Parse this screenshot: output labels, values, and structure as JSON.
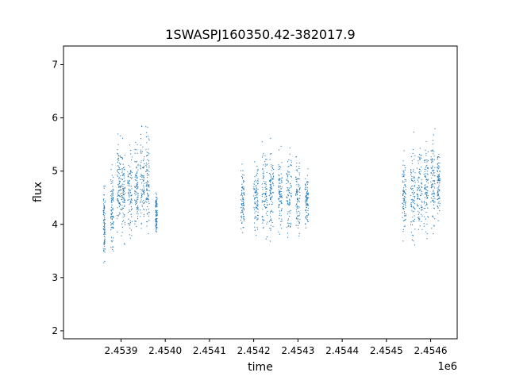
{
  "chart_data": {
    "type": "scatter",
    "title": "1SWASPJ160350.42-382017.9",
    "xlabel": "time",
    "ylabel": "flux",
    "x_offset_label": "1e6",
    "x_tick_labels": [
      "2.4539",
      "2.4540",
      "2.4541",
      "2.4542",
      "2.4543",
      "2.4544",
      "2.4545",
      "2.4546"
    ],
    "x_ticks": [
      2453900,
      2454000,
      2454100,
      2454200,
      2454300,
      2454400,
      2454500,
      2454600
    ],
    "y_ticks": [
      2,
      3,
      4,
      5,
      6,
      7
    ],
    "y_tick_labels": [
      "2",
      "3",
      "4",
      "5",
      "6",
      "7"
    ],
    "xlim": [
      2453770,
      2454660
    ],
    "ylim": [
      1.85,
      7.35
    ],
    "grid": false,
    "marker_color": "#1f77b4",
    "series": [
      {
        "clusters": [
          {
            "x": 2453862,
            "y": 4.0,
            "w": 4,
            "h": 1.8
          },
          {
            "x": 2453880,
            "y": 4.3,
            "w": 6,
            "h": 2.0
          },
          {
            "x": 2453895,
            "y": 4.8,
            "w": 8,
            "h": 2.4
          },
          {
            "x": 2453905,
            "y": 4.6,
            "w": 8,
            "h": 2.2
          },
          {
            "x": 2453920,
            "y": 4.6,
            "w": 10,
            "h": 2.3
          },
          {
            "x": 2453935,
            "y": 4.6,
            "w": 8,
            "h": 2.2
          },
          {
            "x": 2453948,
            "y": 4.8,
            "w": 10,
            "h": 2.4
          },
          {
            "x": 2453960,
            "y": 4.8,
            "w": 8,
            "h": 2.4
          },
          {
            "x": 2453980,
            "y": 4.2,
            "w": 4,
            "h": 1.0
          },
          {
            "x": 2454175,
            "y": 4.5,
            "w": 8,
            "h": 1.6
          },
          {
            "x": 2454205,
            "y": 4.5,
            "w": 10,
            "h": 2.0
          },
          {
            "x": 2454225,
            "y": 4.6,
            "w": 12,
            "h": 2.4
          },
          {
            "x": 2454240,
            "y": 4.6,
            "w": 10,
            "h": 2.0
          },
          {
            "x": 2454260,
            "y": 4.6,
            "w": 8,
            "h": 1.8
          },
          {
            "x": 2454280,
            "y": 4.6,
            "w": 12,
            "h": 2.0
          },
          {
            "x": 2454300,
            "y": 4.6,
            "w": 10,
            "h": 2.0
          },
          {
            "x": 2454320,
            "y": 4.4,
            "w": 8,
            "h": 1.5
          },
          {
            "x": 2454540,
            "y": 4.5,
            "w": 8,
            "h": 1.8
          },
          {
            "x": 2454560,
            "y": 4.6,
            "w": 10,
            "h": 2.3
          },
          {
            "x": 2454575,
            "y": 4.6,
            "w": 12,
            "h": 2.4
          },
          {
            "x": 2454590,
            "y": 4.7,
            "w": 10,
            "h": 2.2
          },
          {
            "x": 2454605,
            "y": 4.8,
            "w": 10,
            "h": 2.5
          },
          {
            "x": 2454618,
            "y": 4.8,
            "w": 6,
            "h": 1.6
          }
        ]
      }
    ]
  }
}
